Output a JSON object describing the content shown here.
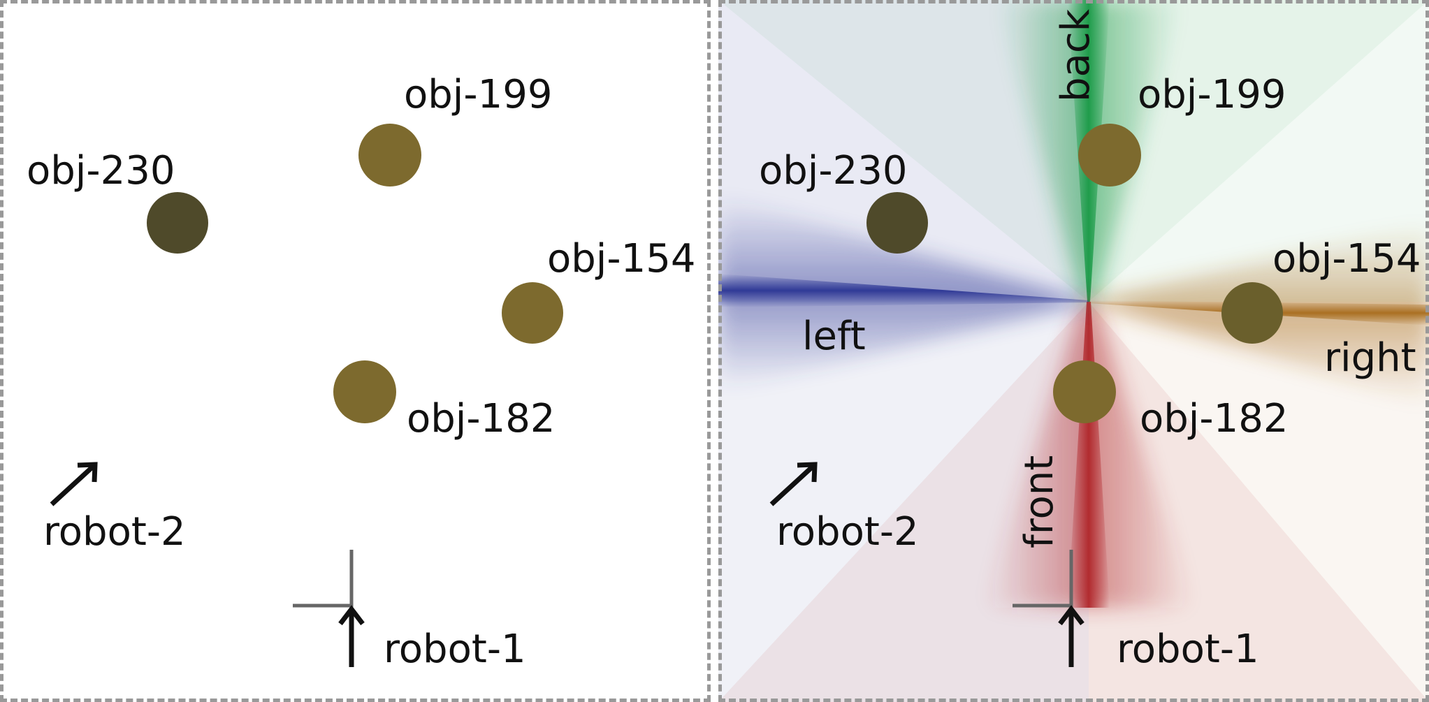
{
  "colors": {
    "object_fill": "#7d6a2e",
    "object_fill_dark": "#4f4a2a",
    "frame": "#999999",
    "arrow": "#111111",
    "axis_gray": "#666666",
    "back": "#1a9a47",
    "left": "#2b3594",
    "right": "#a86c1c",
    "front": "#b0262a"
  },
  "objects": {
    "obj_199": "obj-199",
    "obj_230": "obj-230",
    "obj_154": "obj-154",
    "obj_182": "obj-182"
  },
  "robots": {
    "robot_1": "robot-1",
    "robot_2": "robot-2"
  },
  "directions": {
    "back": "back",
    "left": "left",
    "right": "right",
    "front": "front"
  }
}
